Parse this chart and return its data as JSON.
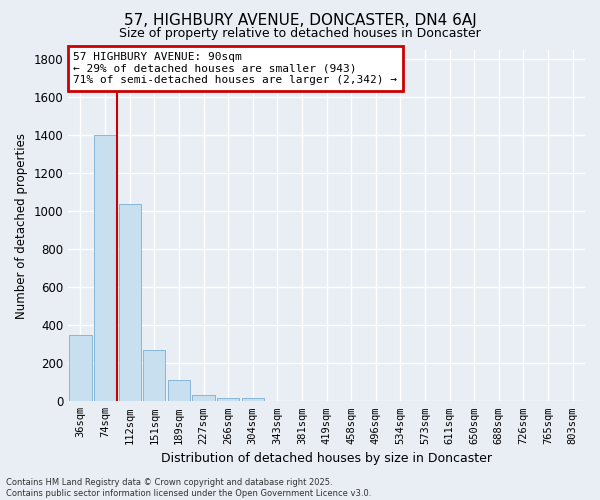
{
  "title": "57, HIGHBURY AVENUE, DONCASTER, DN4 6AJ",
  "subtitle": "Size of property relative to detached houses in Doncaster",
  "xlabel": "Distribution of detached houses by size in Doncaster",
  "ylabel": "Number of detached properties",
  "footer_line1": "Contains HM Land Registry data © Crown copyright and database right 2025.",
  "footer_line2": "Contains public sector information licensed under the Open Government Licence v3.0.",
  "annotation_title": "57 HIGHBURY AVENUE: 90sqm",
  "annotation_line1": "← 29% of detached houses are smaller (943)",
  "annotation_line2": "71% of semi-detached houses are larger (2,342) →",
  "categories": [
    "36sqm",
    "74sqm",
    "112sqm",
    "151sqm",
    "189sqm",
    "227sqm",
    "266sqm",
    "304sqm",
    "343sqm",
    "381sqm",
    "419sqm",
    "458sqm",
    "496sqm",
    "534sqm",
    "573sqm",
    "611sqm",
    "650sqm",
    "688sqm",
    "726sqm",
    "765sqm",
    "803sqm"
  ],
  "values": [
    350,
    1400,
    1040,
    270,
    110,
    35,
    20,
    15,
    0,
    0,
    0,
    0,
    0,
    0,
    0,
    0,
    0,
    0,
    0,
    0,
    0
  ],
  "bar_color": "#c8dff0",
  "bar_edge_color": "#7aafd4",
  "marker_color": "#cc0000",
  "ylim": [
    0,
    1850
  ],
  "yticks": [
    0,
    200,
    400,
    600,
    800,
    1000,
    1200,
    1400,
    1600,
    1800
  ],
  "background_color": "#e8eef4",
  "plot_background": "#e8eef4",
  "annotation_box_color": "#ffffff",
  "annotation_border_color": "#cc0000",
  "property_bin_index": 1,
  "title_fontsize": 11,
  "subtitle_fontsize": 9
}
